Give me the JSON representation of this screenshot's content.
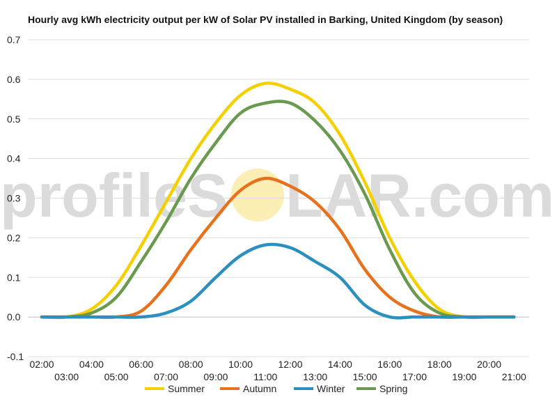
{
  "chart_data": {
    "type": "line",
    "title": "Hourly avg kWh electricity output per kW of Solar PV installed in Barking, United Kingdom (by season)",
    "xlabel": "",
    "ylabel": "",
    "ylim": [
      -0.1,
      0.7
    ],
    "yticks": [
      "-0.1",
      "0.0",
      "0.1",
      "0.2",
      "0.3",
      "0.4",
      "0.5",
      "0.6",
      "0.7"
    ],
    "x": [
      "02:00",
      "03:00",
      "04:00",
      "05:00",
      "06:00",
      "07:00",
      "08:00",
      "09:00",
      "10:00",
      "11:00",
      "12:00",
      "13:00",
      "14:00",
      "15:00",
      "16:00",
      "17:00",
      "18:00",
      "19:00",
      "20:00",
      "21:00"
    ],
    "grid": true,
    "legend_position": "bottom",
    "series": [
      {
        "name": "Summer",
        "color": "#f5d000",
        "values": [
          0.0,
          0.0,
          0.02,
          0.08,
          0.18,
          0.29,
          0.4,
          0.49,
          0.56,
          0.59,
          0.575,
          0.54,
          0.46,
          0.34,
          0.2,
          0.09,
          0.02,
          0.0,
          0.0,
          0.0
        ]
      },
      {
        "name": "Autumn",
        "color": "#e8711c",
        "values": [
          0.0,
          0.0,
          0.0,
          0.0,
          0.015,
          0.08,
          0.17,
          0.25,
          0.32,
          0.35,
          0.33,
          0.29,
          0.22,
          0.12,
          0.05,
          0.015,
          0.0,
          0.0,
          0.0,
          0.0
        ]
      },
      {
        "name": "Winter",
        "color": "#2b8fc0",
        "values": [
          0.0,
          0.0,
          0.0,
          0.0,
          0.0,
          0.01,
          0.04,
          0.1,
          0.155,
          0.182,
          0.175,
          0.14,
          0.1,
          0.03,
          0.0,
          0.0,
          0.0,
          0.0,
          0.0,
          0.0
        ]
      },
      {
        "name": "Spring",
        "color": "#6a9a4f",
        "values": [
          0.0,
          0.0,
          0.01,
          0.05,
          0.14,
          0.24,
          0.35,
          0.44,
          0.515,
          0.54,
          0.54,
          0.495,
          0.42,
          0.31,
          0.17,
          0.06,
          0.01,
          0.0,
          0.0,
          0.0
        ]
      }
    ]
  },
  "watermark": {
    "before": "profileS",
    "after": "LAR.com",
    "sun_color": "#f7e27a"
  }
}
